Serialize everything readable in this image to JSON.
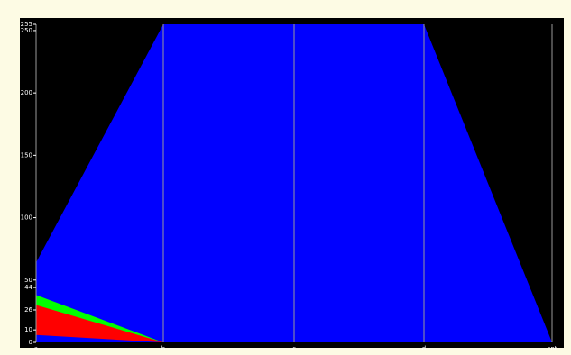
{
  "chart_data": {
    "type": "parallel",
    "categories": [
      "a",
      "b",
      "c",
      "d",
      "cnt"
    ],
    "ylim": [
      0,
      255
    ],
    "yticks": [
      0,
      10,
      26,
      44,
      50,
      100,
      150,
      200,
      250,
      255
    ],
    "bands": [
      {
        "color": "#0000ff",
        "low": [
          0,
          0,
          0,
          0,
          0
        ],
        "high": [
          64,
          255,
          255,
          255,
          0
        ]
      },
      {
        "color": "#00ff00",
        "low": [
          26,
          0,
          0,
          0,
          0
        ],
        "high": [
          38,
          0,
          0,
          0,
          0
        ]
      },
      {
        "color": "#ff0000",
        "low": [
          6,
          0,
          0,
          0,
          0
        ],
        "high": [
          30,
          0,
          0,
          0,
          0
        ]
      }
    ]
  }
}
